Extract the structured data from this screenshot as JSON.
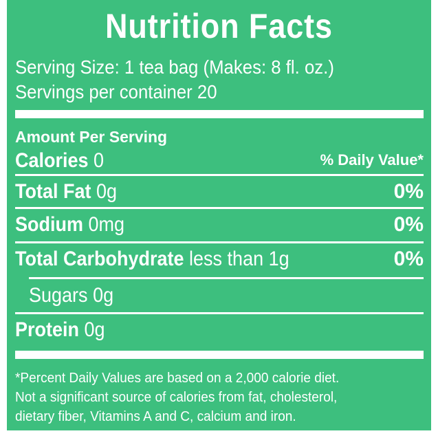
{
  "title": "Nutrition Facts",
  "serving_size": "Serving Size: 1 tea bag (Makes: 8 fl. oz.)",
  "servings_per_container": "Servings per container 20",
  "amount_per_serving": "Amount Per Serving",
  "calories": {
    "label": "Calories",
    "value": "0"
  },
  "daily_value_header": "% Daily Value*",
  "nutrients": [
    {
      "label": "Total Fat",
      "amount": "0g",
      "dv": "0%"
    },
    {
      "label": "Sodium",
      "amount": "0mg",
      "dv": "0%"
    },
    {
      "label": "Total Carbohydrate",
      "amount": "less than 1g",
      "dv": "0%"
    },
    {
      "label": "Sugars",
      "amount": "0g"
    },
    {
      "label": "Protein",
      "amount": "0g"
    }
  ],
  "footnote": [
    "*Percent Daily Values are based on a 2,000 calorie diet.",
    "Not a significant source of calories from fat, cholesterol,",
    "dietary fiber, Vitamins A and C, calcium and iron."
  ],
  "colors": {
    "panel": "#3dbf7e",
    "text": "#ffffff"
  }
}
